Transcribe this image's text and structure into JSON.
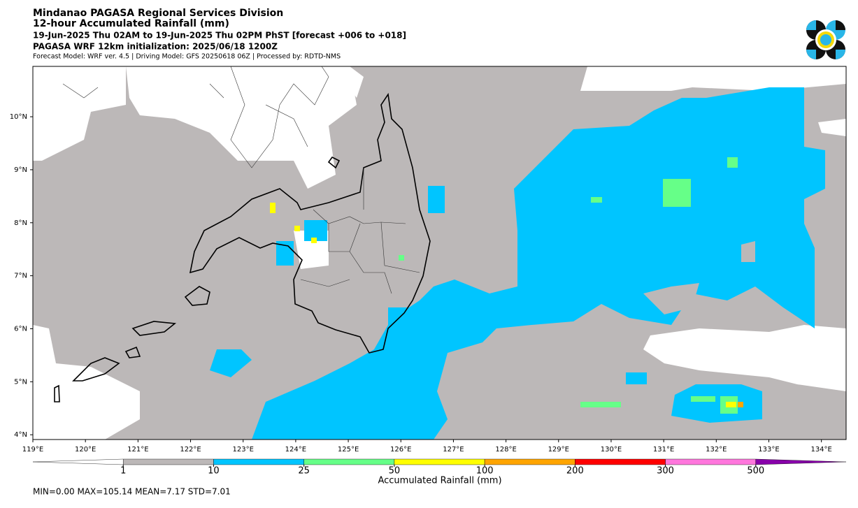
{
  "header": {
    "lines": [
      "Mindanao PAGASA Regional Services Division",
      "12-hour Accumulated Rainfall (mm)",
      "19-Jun-2025 Thu 02AM to 19-Jun-2025 Thu 02PM PhST [forecast +006 to +018]",
      "PAGASA WRF 12km initialization: 2025/06/18 1200Z",
      "Forecast Model: WRF ver. 4.5 | Driving Model: GFS 20250618 06Z | Processed by: RDTD-NMS"
    ]
  },
  "map": {
    "xlim": [
      119,
      134.47
    ],
    "ylim": [
      3.91,
      10.95
    ],
    "xticks": [
      {
        "value": 119,
        "label": "119°E"
      },
      {
        "value": 120,
        "label": "120°E"
      },
      {
        "value": 121,
        "label": "121°E"
      },
      {
        "value": 122,
        "label": "122°E"
      },
      {
        "value": 123,
        "label": "123°E"
      },
      {
        "value": 124,
        "label": "124°E"
      },
      {
        "value": 125,
        "label": "125°E"
      },
      {
        "value": 126,
        "label": "126°E"
      },
      {
        "value": 127,
        "label": "127°E"
      },
      {
        "value": 128,
        "label": "128°E"
      },
      {
        "value": 129,
        "label": "129°E"
      },
      {
        "value": 130,
        "label": "130°E"
      },
      {
        "value": 131,
        "label": "131°E"
      },
      {
        "value": 132,
        "label": "132°E"
      },
      {
        "value": 133,
        "label": "133°E"
      },
      {
        "value": 134,
        "label": "134°E"
      }
    ],
    "yticks": [
      {
        "value": 4,
        "label": "4°N"
      },
      {
        "value": 5,
        "label": "5°N"
      },
      {
        "value": 6,
        "label": "6°N"
      },
      {
        "value": 7,
        "label": "7°N"
      },
      {
        "value": 8,
        "label": "8°N"
      },
      {
        "value": 9,
        "label": "9°N"
      },
      {
        "value": 10,
        "label": "10°N"
      }
    ]
  },
  "colorbar": {
    "levels": [
      1,
      10,
      25,
      50,
      100,
      200,
      300,
      500
    ],
    "colors": [
      "#ffffff",
      "#bcb8b8",
      "#00c5ff",
      "#66ff88",
      "#ffff00",
      "#ffa500",
      "#ff0000",
      "#ff77dd",
      "#8800aa"
    ],
    "label": "Accumulated Rainfall (mm)"
  },
  "stats": "MIN=0.00   MAX=105.14   MEAN=7.17   STD=7.01"
}
